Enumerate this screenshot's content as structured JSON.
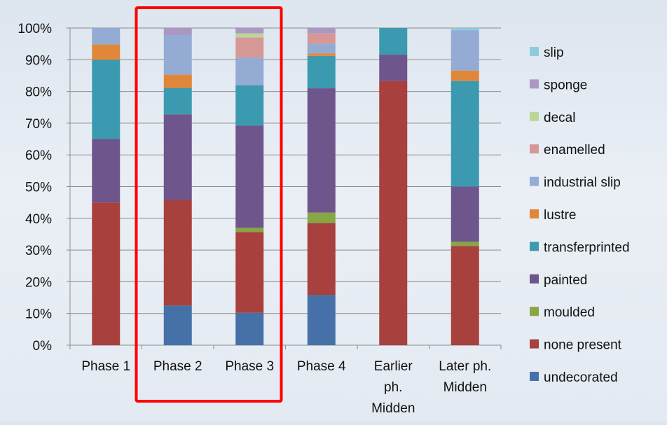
{
  "chart_data": {
    "type": "bar",
    "stacked": true,
    "percent": true,
    "title": "",
    "xlabel": "",
    "ylabel": "",
    "ylim": [
      0,
      100
    ],
    "yticks": [
      "0%",
      "10%",
      "20%",
      "30%",
      "40%",
      "50%",
      "60%",
      "70%",
      "80%",
      "90%",
      "100%"
    ],
    "grid": true,
    "legend_position": "right",
    "categories": [
      [
        "Phase 1"
      ],
      [
        "Phase 2"
      ],
      [
        "Phase 3"
      ],
      [
        "Phase 4"
      ],
      [
        "Earlier",
        "ph.",
        "Midden"
      ],
      [
        "Later ph.",
        "Midden"
      ]
    ],
    "series": [
      {
        "name": "undecorated",
        "color": "#4571a8",
        "values": [
          0,
          12.5,
          10.2,
          15.8,
          0,
          0
        ]
      },
      {
        "name": "none present",
        "color": "#a8403d",
        "values": [
          45,
          33.3,
          25.5,
          22.7,
          83.3,
          31.3
        ]
      },
      {
        "name": "moulded",
        "color": "#86a744",
        "values": [
          0,
          0,
          1.3,
          3.3,
          0,
          1.3
        ]
      },
      {
        "name": "painted",
        "color": "#6e558c",
        "values": [
          20,
          27,
          32.2,
          39.2,
          8.3,
          17.4
        ]
      },
      {
        "name": "transferprinted",
        "color": "#3c9ab0",
        "values": [
          25,
          8.3,
          12.7,
          10.2,
          8.4,
          33.3
        ]
      },
      {
        "name": "lustre",
        "color": "#e0873a",
        "values": [
          4.8,
          4.2,
          0,
          0.8,
          0,
          3.3
        ]
      },
      {
        "name": "industrial slip",
        "color": "#94abd4",
        "values": [
          5.2,
          12.5,
          8.8,
          3,
          0,
          12.7
        ]
      },
      {
        "name": "enamelled",
        "color": "#d59896",
        "values": [
          0,
          0,
          6.3,
          3.3,
          0,
          0
        ]
      },
      {
        "name": "decal",
        "color": "#bcd596",
        "values": [
          0,
          0,
          1.3,
          0,
          0,
          0
        ]
      },
      {
        "name": "sponge",
        "color": "#ab98c2",
        "values": [
          0,
          2.2,
          1.7,
          1.7,
          0,
          0
        ]
      },
      {
        "name": "slip",
        "color": "#8ecbdc",
        "values": [
          0,
          0,
          0,
          0,
          0,
          0.7
        ]
      }
    ],
    "highlight": {
      "categories": [
        "Phase 2",
        "Phase 3"
      ],
      "color": "#ff0000"
    }
  }
}
